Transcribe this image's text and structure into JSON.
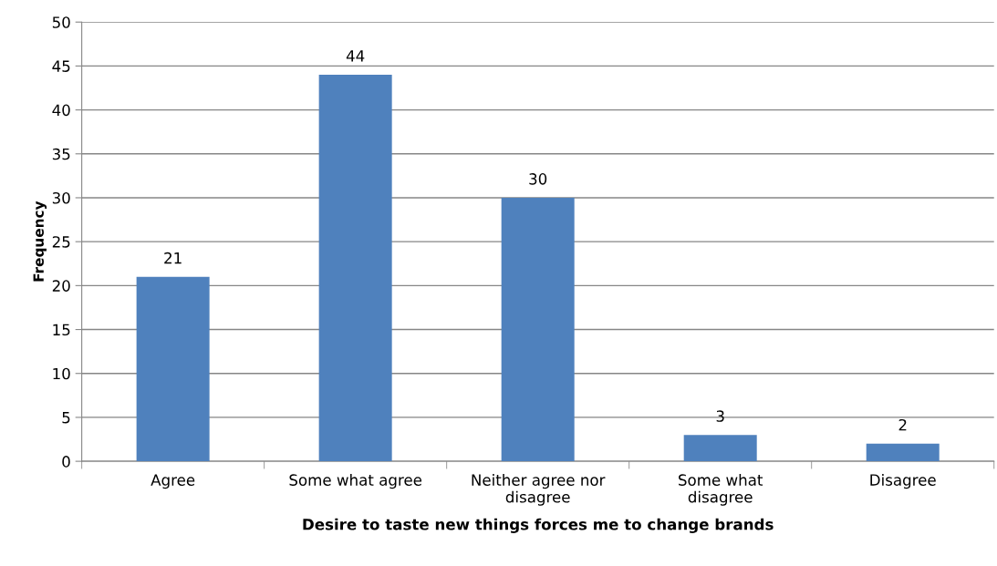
{
  "chart_data": {
    "type": "bar",
    "xlabel": "Desire to taste new things forces me to change brands",
    "ylabel": "Frequency",
    "categories": [
      "Agree",
      "Some what agree",
      "Neither agree nor disagree",
      "Some what disagree",
      "Disagree"
    ],
    "values": [
      21,
      44,
      30,
      3,
      2
    ],
    "color": "#4f81bd",
    "ylim": [
      0,
      50
    ],
    "yticks": [
      0,
      5,
      10,
      15,
      20,
      25,
      30,
      35,
      40,
      45,
      50
    ],
    "grid": "y",
    "data_labels": true,
    "legend": false
  }
}
